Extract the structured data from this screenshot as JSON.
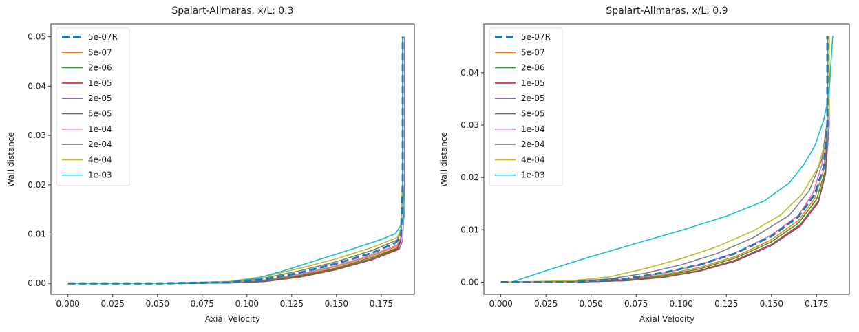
{
  "chart_data": [
    {
      "type": "line",
      "title": "Spalart-Allmaras, x/L: 0.3",
      "xlabel": "Axial Velocity",
      "ylabel": "Wall distance",
      "xlim": [
        -0.0095,
        0.1935
      ],
      "ylim": [
        -0.0022,
        0.0526
      ],
      "xticks": [
        0.0,
        0.025,
        0.05,
        0.075,
        0.1,
        0.125,
        0.15,
        0.175
      ],
      "xtick_labels": [
        "0.000",
        "0.025",
        "0.050",
        "0.075",
        "0.100",
        "0.125",
        "0.150",
        "0.175"
      ],
      "yticks": [
        0.0,
        0.01,
        0.02,
        0.03,
        0.04,
        0.05
      ],
      "ytick_labels": [
        "0.00",
        "0.01",
        "0.02",
        "0.03",
        "0.04",
        "0.05"
      ],
      "grid": false,
      "legend_position": "upper-left",
      "series": [
        {
          "name": "5e-07R",
          "color": "#1f77b4",
          "dashed": true,
          "x": [
            0.0,
            0.05,
            0.09,
            0.11,
            0.13,
            0.15,
            0.17,
            0.183,
            0.186,
            0.187,
            0.187
          ],
          "y": [
            0.0,
            0.0,
            0.0002,
            0.0008,
            0.0022,
            0.004,
            0.0062,
            0.0082,
            0.0095,
            0.02,
            0.05
          ]
        },
        {
          "name": "5e-07",
          "color": "#ff7f0e",
          "dashed": false,
          "x": [
            0.0,
            0.05,
            0.09,
            0.11,
            0.13,
            0.15,
            0.17,
            0.184,
            0.186,
            0.187,
            0.187
          ],
          "y": [
            0.0,
            0.0,
            0.0001,
            0.0006,
            0.0018,
            0.0034,
            0.0056,
            0.0075,
            0.0092,
            0.02,
            0.05
          ]
        },
        {
          "name": "2e-06",
          "color": "#2ca02c",
          "dashed": false,
          "x": [
            0.0,
            0.05,
            0.09,
            0.11,
            0.13,
            0.15,
            0.17,
            0.184,
            0.186,
            0.187,
            0.187
          ],
          "y": [
            0.0,
            0.0,
            0.0001,
            0.0005,
            0.0016,
            0.0031,
            0.0053,
            0.0072,
            0.009,
            0.02,
            0.05
          ]
        },
        {
          "name": "1e-05",
          "color": "#d62728",
          "dashed": false,
          "x": [
            0.0,
            0.05,
            0.09,
            0.11,
            0.13,
            0.15,
            0.17,
            0.184,
            0.186,
            0.187,
            0.187
          ],
          "y": [
            0.0,
            0.0,
            0.0001,
            0.0004,
            0.0014,
            0.0029,
            0.005,
            0.007,
            0.0088,
            0.02,
            0.05
          ]
        },
        {
          "name": "2e-05",
          "color": "#9467bd",
          "dashed": false,
          "x": [
            0.0,
            0.05,
            0.09,
            0.11,
            0.13,
            0.15,
            0.17,
            0.185,
            0.187,
            0.188,
            0.188
          ],
          "y": [
            0.0,
            0.0,
            0.0001,
            0.0004,
            0.0013,
            0.0028,
            0.0049,
            0.0069,
            0.0087,
            0.02,
            0.05
          ]
        },
        {
          "name": "5e-05",
          "color": "#8c564b",
          "dashed": false,
          "x": [
            0.0,
            0.05,
            0.09,
            0.11,
            0.13,
            0.15,
            0.17,
            0.184,
            0.186,
            0.187,
            0.187
          ],
          "y": [
            0.0,
            0.0,
            0.0001,
            0.0004,
            0.0013,
            0.0028,
            0.0048,
            0.0068,
            0.0086,
            0.02,
            0.05
          ]
        },
        {
          "name": "1e-04",
          "color": "#e377c2",
          "dashed": false,
          "x": [
            0.0,
            0.05,
            0.09,
            0.11,
            0.13,
            0.15,
            0.17,
            0.184,
            0.186,
            0.187,
            0.187
          ],
          "y": [
            0.0,
            0.0,
            0.0002,
            0.0007,
            0.0019,
            0.0036,
            0.0058,
            0.0078,
            0.0094,
            0.02,
            0.05
          ]
        },
        {
          "name": "2e-04",
          "color": "#7f7f7f",
          "dashed": false,
          "x": [
            0.0,
            0.05,
            0.09,
            0.11,
            0.13,
            0.15,
            0.17,
            0.184,
            0.186,
            0.187,
            0.187
          ],
          "y": [
            0.0,
            0.0,
            0.0003,
            0.0011,
            0.0026,
            0.0044,
            0.0067,
            0.0088,
            0.0105,
            0.02,
            0.05
          ]
        },
        {
          "name": "4e-04",
          "color": "#bcbd22",
          "dashed": false,
          "x": [
            0.0,
            0.05,
            0.09,
            0.11,
            0.13,
            0.15,
            0.17,
            0.184,
            0.186,
            0.187,
            0.187
          ],
          "y": [
            0.0,
            0.0,
            0.0004,
            0.0014,
            0.0031,
            0.005,
            0.0073,
            0.0093,
            0.011,
            0.02,
            0.05
          ]
        },
        {
          "name": "1e-03",
          "color": "#17becf",
          "dashed": false,
          "x": [
            0.0,
            0.05,
            0.088,
            0.105,
            0.12,
            0.14,
            0.16,
            0.175,
            0.183,
            0.186,
            0.188,
            0.187,
            0.187
          ],
          "y": [
            0.0,
            0.0,
            0.0002,
            0.001,
            0.0025,
            0.0048,
            0.0071,
            0.0089,
            0.0101,
            0.0118,
            0.0136,
            0.02,
            0.05
          ]
        }
      ]
    },
    {
      "type": "line",
      "title": "Spalart-Allmaras, x/L: 0.9",
      "xlabel": "Axial Velocity",
      "ylabel": "Wall distance",
      "xlim": [
        -0.0094,
        0.1932
      ],
      "ylim": [
        -0.0023,
        0.0493
      ],
      "xticks": [
        0.0,
        0.025,
        0.05,
        0.075,
        0.1,
        0.125,
        0.15,
        0.175
      ],
      "xtick_labels": [
        "0.000",
        "0.025",
        "0.050",
        "0.075",
        "0.100",
        "0.125",
        "0.150",
        "0.175"
      ],
      "yticks": [
        0.0,
        0.01,
        0.02,
        0.03,
        0.04
      ],
      "ytick_labels": [
        "0.00",
        "0.01",
        "0.02",
        "0.03",
        "0.04"
      ],
      "grid": false,
      "legend_position": "upper-left",
      "series": [
        {
          "name": "5e-07R",
          "color": "#1f77b4",
          "dashed": true,
          "x": [
            0.0,
            0.04,
            0.07,
            0.09,
            0.11,
            0.13,
            0.15,
            0.165,
            0.174,
            0.179,
            0.181,
            0.181
          ],
          "y": [
            0.0,
            0.0,
            0.0007,
            0.0018,
            0.0033,
            0.0055,
            0.0088,
            0.0125,
            0.0168,
            0.022,
            0.03,
            0.047
          ]
        },
        {
          "name": "5e-07",
          "color": "#ff7f0e",
          "dashed": false,
          "x": [
            0.0,
            0.04,
            0.07,
            0.09,
            0.11,
            0.13,
            0.15,
            0.165,
            0.174,
            0.179,
            0.181,
            0.181
          ],
          "y": [
            0.0,
            0.0,
            0.0005,
            0.0014,
            0.0028,
            0.0049,
            0.0081,
            0.0118,
            0.016,
            0.0215,
            0.03,
            0.047
          ]
        },
        {
          "name": "2e-06",
          "color": "#2ca02c",
          "dashed": false,
          "x": [
            0.0,
            0.04,
            0.07,
            0.09,
            0.11,
            0.13,
            0.15,
            0.165,
            0.175,
            0.18,
            0.182,
            0.182
          ],
          "y": [
            0.0,
            0.0,
            0.0004,
            0.0012,
            0.0025,
            0.0046,
            0.0077,
            0.0113,
            0.0158,
            0.0215,
            0.03,
            0.047
          ]
        },
        {
          "name": "1e-05",
          "color": "#d62728",
          "dashed": false,
          "x": [
            0.0,
            0.04,
            0.07,
            0.09,
            0.11,
            0.13,
            0.15,
            0.166,
            0.176,
            0.18,
            0.182,
            0.182
          ],
          "y": [
            0.0,
            0.0,
            0.0003,
            0.001,
            0.0022,
            0.0042,
            0.0072,
            0.011,
            0.0155,
            0.021,
            0.03,
            0.047
          ]
        },
        {
          "name": "2e-05",
          "color": "#9467bd",
          "dashed": false,
          "x": [
            0.0,
            0.04,
            0.07,
            0.09,
            0.11,
            0.13,
            0.15,
            0.166,
            0.176,
            0.18,
            0.182,
            0.182
          ],
          "y": [
            0.0,
            0.0,
            0.0003,
            0.001,
            0.0021,
            0.0041,
            0.0071,
            0.0108,
            0.0153,
            0.0208,
            0.03,
            0.047
          ]
        },
        {
          "name": "5e-05",
          "color": "#8c564b",
          "dashed": false,
          "x": [
            0.0,
            0.04,
            0.07,
            0.09,
            0.11,
            0.13,
            0.15,
            0.166,
            0.176,
            0.18,
            0.181,
            0.181
          ],
          "y": [
            0.0,
            0.0,
            0.0003,
            0.0009,
            0.0021,
            0.004,
            0.007,
            0.0107,
            0.0152,
            0.0207,
            0.03,
            0.047
          ]
        },
        {
          "name": "1e-04",
          "color": "#e377c2",
          "dashed": false,
          "x": [
            0.0,
            0.04,
            0.07,
            0.09,
            0.11,
            0.13,
            0.15,
            0.165,
            0.173,
            0.178,
            0.181,
            0.181
          ],
          "y": [
            0.0,
            0.0,
            0.0006,
            0.0017,
            0.0033,
            0.0056,
            0.009,
            0.0128,
            0.017,
            0.0225,
            0.03,
            0.047
          ]
        },
        {
          "name": "2e-04",
          "color": "#7f7f7f",
          "dashed": false,
          "x": [
            0.0,
            0.04,
            0.06,
            0.08,
            0.1,
            0.12,
            0.14,
            0.16,
            0.171,
            0.178,
            0.181,
            0.181
          ],
          "y": [
            0.0,
            0.0002,
            0.0006,
            0.0017,
            0.0033,
            0.0055,
            0.0085,
            0.0128,
            0.0175,
            0.0235,
            0.031,
            0.047
          ]
        },
        {
          "name": "4e-04",
          "color": "#bcbd22",
          "dashed": false,
          "x": [
            0.0,
            0.04,
            0.06,
            0.08,
            0.1,
            0.12,
            0.14,
            0.155,
            0.167,
            0.176,
            0.18,
            0.182,
            0.182
          ],
          "y": [
            0.0,
            0.0003,
            0.001,
            0.0026,
            0.0045,
            0.0068,
            0.0098,
            0.0128,
            0.0168,
            0.022,
            0.027,
            0.033,
            0.047
          ]
        },
        {
          "name": "1e-03",
          "color": "#17becf",
          "dashed": false,
          "x": [
            0.006,
            0.025,
            0.05,
            0.075,
            0.1,
            0.125,
            0.146,
            0.16,
            0.168,
            0.174,
            0.179,
            0.182,
            0.183,
            0.184
          ],
          "y": [
            0.0,
            0.0022,
            0.0049,
            0.0074,
            0.0099,
            0.0126,
            0.0155,
            0.019,
            0.0225,
            0.026,
            0.031,
            0.036,
            0.042,
            0.047
          ]
        }
      ]
    }
  ]
}
